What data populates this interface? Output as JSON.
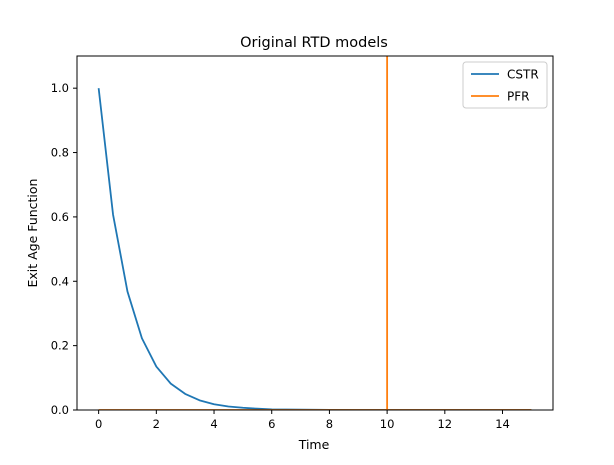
{
  "chart_data": {
    "type": "line",
    "title": "Original RTD models",
    "xlabel": "Time",
    "ylabel": "Exit Age Function",
    "xlim": [
      -0.75,
      15.75
    ],
    "ylim": [
      0,
      1.1
    ],
    "xticks": [
      0,
      2,
      4,
      6,
      8,
      10,
      12,
      14
    ],
    "xtick_labels": [
      "0",
      "2",
      "4",
      "6",
      "8",
      "10",
      "12",
      "14"
    ],
    "yticks": [
      0,
      0.2,
      0.4,
      0.6,
      0.8,
      1.0
    ],
    "ytick_labels": [
      "0.0",
      "0.2",
      "0.4",
      "0.6",
      "0.8",
      "1.0"
    ],
    "grid": false,
    "legend_position": "top-right",
    "series": [
      {
        "name": "CSTR",
        "color": "#1f77b4",
        "x": [
          0,
          0.5,
          1,
          1.5,
          2,
          2.5,
          3,
          3.5,
          4,
          4.5,
          5,
          5.5,
          6,
          6.5,
          7,
          7.5,
          8,
          9,
          10,
          11,
          12,
          13,
          14,
          15
        ],
        "y": [
          1.0,
          0.607,
          0.368,
          0.223,
          0.135,
          0.082,
          0.05,
          0.03,
          0.018,
          0.011,
          0.007,
          0.004,
          0.002,
          0.0015,
          0.0009,
          0.0006,
          0.0003,
          0.0001,
          0,
          0,
          0,
          0,
          0,
          0
        ]
      },
      {
        "name": "PFR",
        "color": "#ff7f0e",
        "x": [
          0,
          10,
          10,
          10,
          15
        ],
        "y": [
          0,
          0,
          1.1,
          0,
          0
        ]
      }
    ]
  }
}
